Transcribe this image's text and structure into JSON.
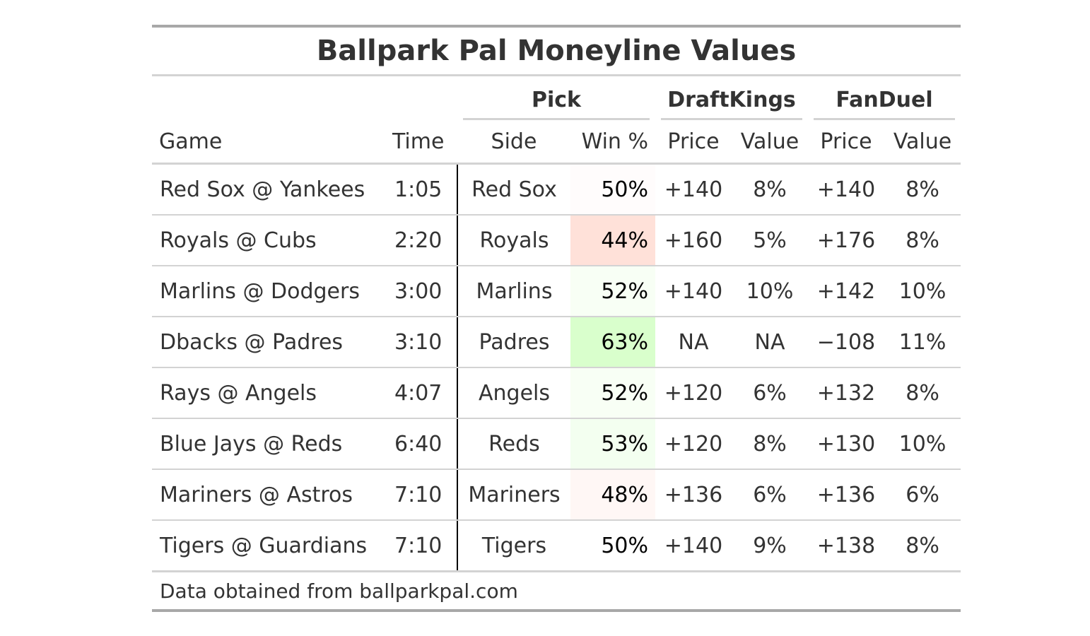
{
  "chart_data": {
    "type": "table",
    "title": "Ballpark Pal Moneyline Values",
    "spanners": {
      "pick": "Pick",
      "draftkings": "DraftKings",
      "fanduel": "FanDuel"
    },
    "columns": [
      "Game",
      "Time",
      "Side",
      "Win %",
      "Price",
      "Value",
      "Price",
      "Value"
    ],
    "rows": [
      {
        "game": "Red Sox @ Yankees",
        "time": "1:05",
        "side": "Red Sox",
        "win": "50%",
        "dk_price": "+140",
        "dk_value": "8%",
        "fd_price": "+140",
        "fd_value": "8%",
        "win_color": "#fffcfc"
      },
      {
        "game": "Royals @ Cubs",
        "time": "2:20",
        "side": "Royals",
        "win": "44%",
        "dk_price": "+160",
        "dk_value": "5%",
        "fd_price": "+176",
        "fd_value": "8%",
        "win_color": "#ffe1d9"
      },
      {
        "game": "Marlins @ Dodgers",
        "time": "3:00",
        "side": "Marlins",
        "win": "52%",
        "dk_price": "+140",
        "dk_value": "10%",
        "fd_price": "+142",
        "fd_value": "10%",
        "win_color": "#f8fff5"
      },
      {
        "game": "Dbacks @ Padres",
        "time": "3:10",
        "side": "Padres",
        "win": "63%",
        "dk_price": "NA",
        "dk_value": "NA",
        "fd_price": "−108",
        "fd_value": "11%",
        "win_color": "#d9ffcc"
      },
      {
        "game": "Rays @ Angels",
        "time": "4:07",
        "side": "Angels",
        "win": "52%",
        "dk_price": "+120",
        "dk_value": "6%",
        "fd_price": "+132",
        "fd_value": "8%",
        "win_color": "#f8fff5"
      },
      {
        "game": "Blue Jays @ Reds",
        "time": "6:40",
        "side": "Reds",
        "win": "53%",
        "dk_price": "+120",
        "dk_value": "8%",
        "fd_price": "+130",
        "fd_value": "10%",
        "win_color": "#f3fff0"
      },
      {
        "game": "Mariners @ Astros",
        "time": "7:10",
        "side": "Mariners",
        "win": "48%",
        "dk_price": "+136",
        "dk_value": "6%",
        "fd_price": "+136",
        "fd_value": "6%",
        "win_color": "#fff7f5"
      },
      {
        "game": "Tigers @ Guardians",
        "time": "7:10",
        "side": "Tigers",
        "win": "50%",
        "dk_price": "+140",
        "dk_value": "9%",
        "fd_price": "+138",
        "fd_value": "8%",
        "win_color": "#ffffff"
      }
    ],
    "source_note": "Data obtained from ballparkpal.com"
  }
}
